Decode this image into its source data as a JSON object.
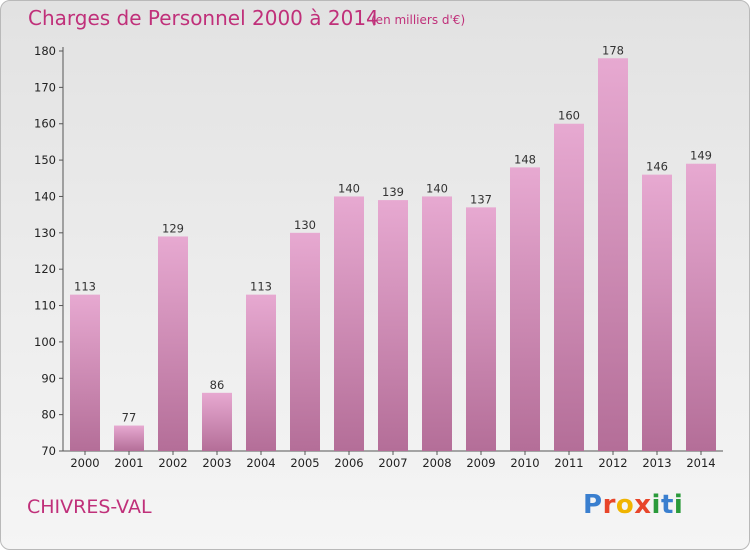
{
  "title": "Charges de Personnel 2000 à 2014",
  "unit_note": "(en milliers d'€)",
  "commune": "CHIVRES-VAL",
  "logo": {
    "text": "Proxiti",
    "letter_colors": [
      "#3a7fcf",
      "#e8452a",
      "#f0b400",
      "#e8452a",
      "#2a9a3a",
      "#3a7fcf",
      "#2a9a3a"
    ]
  },
  "colors": {
    "title": "#c0307a",
    "bar_top": "#e7a9d1",
    "bar_bottom": "#b46e98"
  },
  "chart_data": {
    "type": "bar",
    "categories": [
      "2000",
      "2001",
      "2002",
      "2003",
      "2004",
      "2005",
      "2006",
      "2007",
      "2008",
      "2009",
      "2010",
      "2011",
      "2012",
      "2013",
      "2014"
    ],
    "values": [
      113,
      77,
      129,
      86,
      113,
      130,
      140,
      139,
      140,
      137,
      148,
      160,
      178,
      146,
      149
    ],
    "ylim": [
      70,
      180
    ],
    "yticks": [
      70,
      80,
      90,
      100,
      110,
      120,
      130,
      140,
      150,
      160,
      170,
      180
    ],
    "xlabel": "",
    "ylabel": "",
    "grid": false
  }
}
